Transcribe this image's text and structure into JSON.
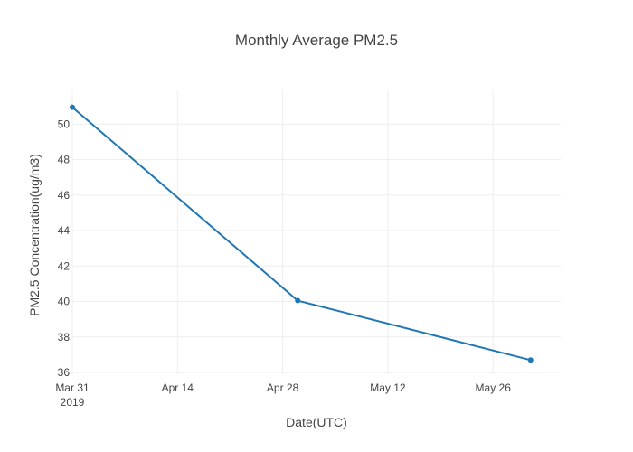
{
  "chart_data": {
    "type": "line",
    "title": "Monthly Average PM2.5",
    "xlabel": "Date(UTC)",
    "ylabel": "PM2.5 Concentration(ug/m3)",
    "x": [
      "2019-03-31",
      "2019-04-30",
      "2019-05-31"
    ],
    "series": [
      {
        "values": [
          50.95,
          40.05,
          36.7
        ],
        "color": "#1f77b4"
      }
    ],
    "xlim": [
      "2019-03-31",
      "2019-06-04"
    ],
    "ylim": [
      35.9,
      51.9
    ],
    "x_ticks": [
      {
        "date": "2019-03-31",
        "label": "Mar 31",
        "sublabel": "2019"
      },
      {
        "date": "2019-04-14",
        "label": "Apr 14",
        "sublabel": ""
      },
      {
        "date": "2019-04-28",
        "label": "Apr 28",
        "sublabel": ""
      },
      {
        "date": "2019-05-12",
        "label": "May 12",
        "sublabel": ""
      },
      {
        "date": "2019-05-26",
        "label": "May 26",
        "sublabel": ""
      }
    ],
    "y_ticks": [
      36,
      38,
      40,
      42,
      44,
      46,
      48,
      50
    ],
    "grid": true,
    "legend": "none"
  }
}
